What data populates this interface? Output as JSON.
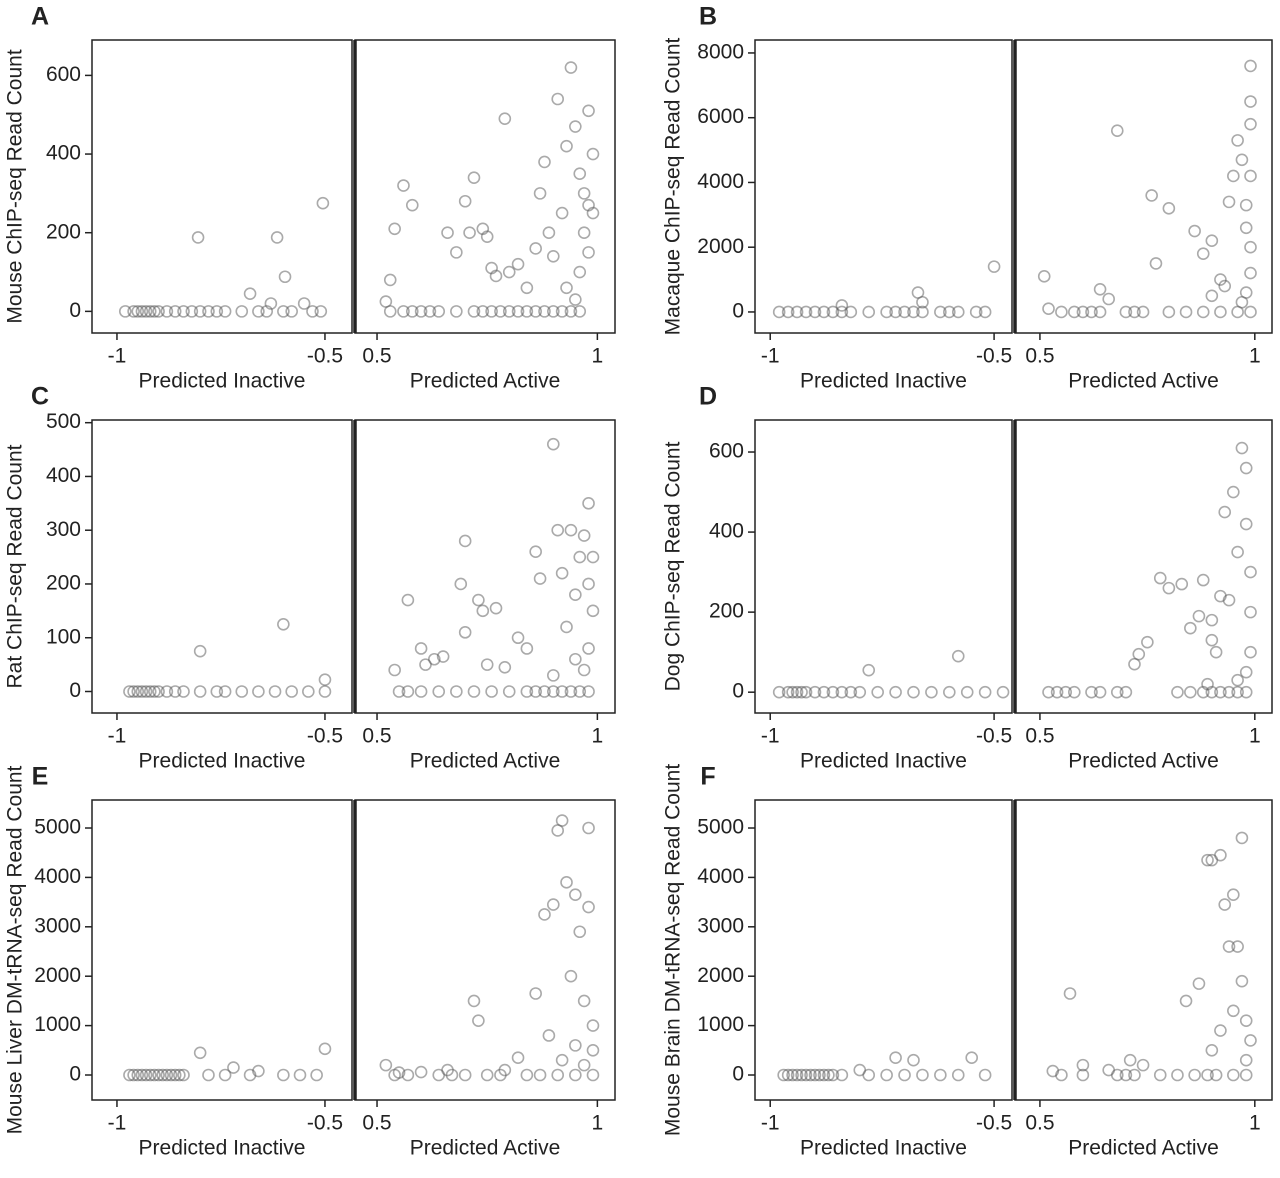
{
  "chart_data": [
    {
      "type": "scatter",
      "panel": "A",
      "ylabel": "Mouse ChIP-seq Read Count",
      "ylim": [
        -55,
        690
      ],
      "yticks": [
        0,
        200,
        400,
        600
      ],
      "marker_color": "#555555",
      "subplots": [
        {
          "xlabel": "Predicted Inactive",
          "xlim": [
            -1.06,
            -0.435
          ],
          "xticks": [
            -1,
            -0.5
          ],
          "x": [
            -0.805,
            -0.615,
            -0.596,
            -0.68,
            -0.505,
            -0.63,
            -0.55,
            -0.98,
            -0.96,
            -0.95,
            -0.94,
            -0.93,
            -0.92,
            -0.91,
            -0.9,
            -0.88,
            -0.86,
            -0.84,
            -0.82,
            -0.8,
            -0.78,
            -0.76,
            -0.74,
            -0.7,
            -0.66,
            -0.64,
            -0.6,
            -0.58,
            -0.53,
            -0.51
          ],
          "y": [
            188,
            188,
            88,
            45,
            275,
            20,
            20,
            0,
            0,
            0,
            0,
            0,
            0,
            0,
            0,
            0,
            0,
            0,
            0,
            0,
            0,
            0,
            0,
            0,
            0,
            0,
            0,
            0,
            0,
            0
          ]
        },
        {
          "xlabel": "Predicted Active",
          "xlim": [
            0.45,
            1.04
          ],
          "xticks": [
            0.5,
            1
          ],
          "x": [
            0.52,
            0.53,
            0.54,
            0.56,
            0.58,
            0.66,
            0.68,
            0.7,
            0.71,
            0.72,
            0.74,
            0.75,
            0.76,
            0.77,
            0.79,
            0.8,
            0.82,
            0.84,
            0.86,
            0.87,
            0.88,
            0.89,
            0.9,
            0.91,
            0.92,
            0.93,
            0.94,
            0.95,
            0.96,
            0.97,
            0.98,
            0.98,
            0.99,
            0.97,
            0.96,
            0.93,
            0.95,
            0.99,
            0.98,
            0.53,
            0.56,
            0.58,
            0.6,
            0.62,
            0.64,
            0.68,
            0.72,
            0.74,
            0.76,
            0.78,
            0.8,
            0.82,
            0.84,
            0.86,
            0.88,
            0.9,
            0.92,
            0.94,
            0.96
          ],
          "y": [
            25,
            80,
            210,
            320,
            270,
            200,
            150,
            280,
            200,
            340,
            210,
            190,
            110,
            90,
            490,
            100,
            120,
            60,
            160,
            300,
            380,
            200,
            140,
            540,
            250,
            420,
            620,
            470,
            350,
            300,
            510,
            270,
            400,
            200,
            100,
            60,
            30,
            250,
            150,
            0,
            0,
            0,
            0,
            0,
            0,
            0,
            0,
            0,
            0,
            0,
            0,
            0,
            0,
            0,
            0,
            0,
            0,
            0,
            0
          ]
        }
      ]
    },
    {
      "type": "scatter",
      "panel": "B",
      "ylabel": "Macaque ChIP-seq Read Count",
      "ylim": [
        -650,
        8400
      ],
      "yticks": [
        0,
        2000,
        4000,
        6000,
        8000
      ],
      "marker_color": "#555555",
      "subplots": [
        {
          "xlabel": "Predicted Inactive",
          "xlim": [
            -1.034,
            -0.46
          ],
          "xticks": [
            -1,
            -0.5
          ],
          "x": [
            -0.84,
            -0.67,
            -0.66,
            -0.5,
            -0.98,
            -0.96,
            -0.94,
            -0.92,
            -0.9,
            -0.88,
            -0.86,
            -0.84,
            -0.82,
            -0.78,
            -0.74,
            -0.72,
            -0.7,
            -0.68,
            -0.66,
            -0.62,
            -0.6,
            -0.58,
            -0.54,
            -0.52
          ],
          "y": [
            200,
            600,
            300,
            1400,
            0,
            0,
            0,
            0,
            0,
            0,
            0,
            0,
            0,
            0,
            0,
            0,
            0,
            0,
            0,
            0,
            0,
            0,
            0,
            0
          ]
        },
        {
          "xlabel": "Predicted Active",
          "xlim": [
            0.442,
            1.04
          ],
          "xticks": [
            0.5,
            1
          ],
          "x": [
            0.51,
            0.52,
            0.68,
            0.64,
            0.66,
            0.76,
            0.77,
            0.8,
            0.86,
            0.88,
            0.9,
            0.92,
            0.94,
            0.95,
            0.96,
            0.97,
            0.98,
            0.99,
            0.99,
            0.99,
            0.99,
            0.98,
            0.99,
            0.99,
            0.98,
            0.97,
            0.93,
            0.9,
            0.55,
            0.58,
            0.6,
            0.62,
            0.64,
            0.7,
            0.72,
            0.74,
            0.8,
            0.84,
            0.88,
            0.92,
            0.96,
            0.99
          ],
          "y": [
            1100,
            100,
            5600,
            700,
            400,
            3600,
            1500,
            3200,
            2500,
            1800,
            2200,
            1000,
            3400,
            4200,
            5300,
            4700,
            3300,
            7600,
            6500,
            5800,
            4200,
            2600,
            2000,
            1200,
            600,
            300,
            800,
            500,
            0,
            0,
            0,
            0,
            0,
            0,
            0,
            0,
            0,
            0,
            0,
            0,
            0,
            0
          ]
        }
      ]
    },
    {
      "type": "scatter",
      "panel": "C",
      "ylabel": "Rat ChIP-seq Read Count",
      "ylim": [
        -40,
        505
      ],
      "yticks": [
        0,
        100,
        200,
        300,
        400,
        500
      ],
      "marker_color": "#555555",
      "subplots": [
        {
          "xlabel": "Predicted Inactive",
          "xlim": [
            -1.06,
            -0.435
          ],
          "xticks": [
            -1,
            -0.5
          ],
          "x": [
            -0.8,
            -0.6,
            -0.5,
            -0.97,
            -0.96,
            -0.95,
            -0.94,
            -0.93,
            -0.92,
            -0.91,
            -0.9,
            -0.88,
            -0.86,
            -0.84,
            -0.8,
            -0.76,
            -0.74,
            -0.7,
            -0.66,
            -0.62,
            -0.58,
            -0.54,
            -0.5
          ],
          "y": [
            75,
            125,
            22,
            0,
            0,
            0,
            0,
            0,
            0,
            0,
            0,
            0,
            0,
            0,
            0,
            0,
            0,
            0,
            0,
            0,
            0,
            0,
            0
          ]
        },
        {
          "xlabel": "Predicted Active",
          "xlim": [
            0.45,
            1.04
          ],
          "xticks": [
            0.5,
            1
          ],
          "x": [
            0.54,
            0.57,
            0.6,
            0.61,
            0.63,
            0.65,
            0.7,
            0.69,
            0.7,
            0.73,
            0.74,
            0.77,
            0.75,
            0.79,
            0.82,
            0.84,
            0.86,
            0.87,
            0.9,
            0.91,
            0.92,
            0.93,
            0.94,
            0.95,
            0.96,
            0.97,
            0.98,
            0.98,
            0.99,
            0.99,
            0.98,
            0.97,
            0.95,
            0.9,
            0.55,
            0.57,
            0.6,
            0.64,
            0.68,
            0.72,
            0.76,
            0.8,
            0.84,
            0.86,
            0.88,
            0.9,
            0.92,
            0.94,
            0.96,
            0.98
          ],
          "y": [
            40,
            170,
            80,
            50,
            60,
            65,
            280,
            200,
            110,
            170,
            150,
            155,
            50,
            45,
            100,
            80,
            260,
            210,
            460,
            300,
            220,
            120,
            300,
            180,
            250,
            290,
            350,
            200,
            250,
            150,
            80,
            40,
            60,
            30,
            0,
            0,
            0,
            0,
            0,
            0,
            0,
            0,
            0,
            0,
            0,
            0,
            0,
            0,
            0,
            0
          ]
        }
      ]
    },
    {
      "type": "scatter",
      "panel": "D",
      "ylabel": "Dog ChIP-seq Read Count",
      "ylim": [
        -52,
        680
      ],
      "yticks": [
        0,
        200,
        400,
        600
      ],
      "marker_color": "#555555",
      "subplots": [
        {
          "xlabel": "Predicted Inactive",
          "xlim": [
            -1.034,
            -0.46
          ],
          "xticks": [
            -1,
            -0.5
          ],
          "x": [
            -0.78,
            -0.58,
            -0.98,
            -0.96,
            -0.95,
            -0.94,
            -0.93,
            -0.92,
            -0.9,
            -0.88,
            -0.86,
            -0.84,
            -0.82,
            -0.8,
            -0.76,
            -0.72,
            -0.68,
            -0.64,
            -0.6,
            -0.56,
            -0.52,
            -0.48
          ],
          "y": [
            55,
            90,
            0,
            0,
            0,
            0,
            0,
            0,
            0,
            0,
            0,
            0,
            0,
            0,
            0,
            0,
            0,
            0,
            0,
            0,
            0,
            0
          ]
        },
        {
          "xlabel": "Predicted Active",
          "xlim": [
            0.442,
            1.04
          ],
          "xticks": [
            0.5,
            1
          ],
          "x": [
            0.72,
            0.73,
            0.75,
            0.78,
            0.8,
            0.83,
            0.85,
            0.87,
            0.88,
            0.9,
            0.91,
            0.92,
            0.93,
            0.94,
            0.95,
            0.96,
            0.97,
            0.98,
            0.98,
            0.99,
            0.99,
            0.99,
            0.98,
            0.96,
            0.9,
            0.89,
            0.52,
            0.54,
            0.56,
            0.58,
            0.62,
            0.64,
            0.68,
            0.7,
            0.82,
            0.85,
            0.88,
            0.9,
            0.92,
            0.94,
            0.96,
            0.98
          ],
          "y": [
            70,
            95,
            125,
            285,
            260,
            270,
            160,
            190,
            280,
            130,
            100,
            240,
            450,
            230,
            500,
            350,
            610,
            560,
            420,
            300,
            200,
            100,
            50,
            30,
            180,
            20,
            0,
            0,
            0,
            0,
            0,
            0,
            0,
            0,
            0,
            0,
            0,
            0,
            0,
            0,
            0,
            0
          ]
        }
      ]
    },
    {
      "type": "scatter",
      "panel": "E",
      "ylabel": "Mouse Liver DM-tRNA-seq Read Count",
      "ylim": [
        -506,
        5567
      ],
      "yticks": [
        0,
        1000,
        2000,
        3000,
        4000,
        5000
      ],
      "marker_color": "#555555",
      "subplots": [
        {
          "xlabel": "Predicted Inactive",
          "xlim": [
            -1.06,
            -0.435
          ],
          "xticks": [
            -1,
            -0.5
          ],
          "x": [
            -0.8,
            -0.5,
            -0.72,
            -0.66,
            -0.97,
            -0.96,
            -0.95,
            -0.94,
            -0.93,
            -0.92,
            -0.91,
            -0.9,
            -0.89,
            -0.88,
            -0.87,
            -0.86,
            -0.85,
            -0.84,
            -0.78,
            -0.74,
            -0.68,
            -0.6,
            -0.56,
            -0.52
          ],
          "y": [
            450,
            530,
            150,
            80,
            0,
            0,
            0,
            0,
            0,
            0,
            0,
            0,
            0,
            0,
            0,
            0,
            0,
            0,
            0,
            0,
            0,
            0,
            0,
            0
          ]
        },
        {
          "xlabel": "Predicted Active",
          "xlim": [
            0.45,
            1.04
          ],
          "xticks": [
            0.5,
            1
          ],
          "x": [
            0.52,
            0.55,
            0.6,
            0.66,
            0.72,
            0.73,
            0.79,
            0.82,
            0.86,
            0.88,
            0.89,
            0.9,
            0.91,
            0.92,
            0.93,
            0.94,
            0.95,
            0.96,
            0.97,
            0.98,
            0.98,
            0.99,
            0.99,
            0.97,
            0.95,
            0.92,
            0.54,
            0.57,
            0.64,
            0.67,
            0.7,
            0.75,
            0.78,
            0.84,
            0.87,
            0.91,
            0.95,
            0.99
          ],
          "y": [
            200,
            50,
            60,
            100,
            1500,
            1100,
            100,
            350,
            1650,
            3250,
            800,
            3450,
            4950,
            5150,
            3900,
            2000,
            3650,
            2900,
            1500,
            5000,
            3400,
            1000,
            500,
            200,
            600,
            300,
            0,
            0,
            0,
            0,
            0,
            0,
            0,
            0,
            0,
            0,
            0,
            0
          ]
        }
      ]
    },
    {
      "type": "scatter",
      "panel": "F",
      "ylabel": "Mouse Brain DM-tRNA-seq Read Count",
      "ylim": [
        -506,
        5567
      ],
      "yticks": [
        0,
        1000,
        2000,
        3000,
        4000,
        5000
      ],
      "marker_color": "#555555",
      "subplots": [
        {
          "xlabel": "Predicted Inactive",
          "xlim": [
            -1.034,
            -0.46
          ],
          "xticks": [
            -1,
            -0.5
          ],
          "x": [
            -0.72,
            -0.68,
            -0.55,
            -0.8,
            -0.97,
            -0.96,
            -0.95,
            -0.94,
            -0.93,
            -0.92,
            -0.91,
            -0.9,
            -0.89,
            -0.88,
            -0.87,
            -0.86,
            -0.84,
            -0.78,
            -0.74,
            -0.7,
            -0.66,
            -0.62,
            -0.58,
            -0.52
          ],
          "y": [
            350,
            300,
            350,
            100,
            0,
            0,
            0,
            0,
            0,
            0,
            0,
            0,
            0,
            0,
            0,
            0,
            0,
            0,
            0,
            0,
            0,
            0,
            0,
            0
          ]
        },
        {
          "xlabel": "Predicted Active",
          "xlim": [
            0.442,
            1.04
          ],
          "xticks": [
            0.5,
            1
          ],
          "x": [
            0.53,
            0.57,
            0.6,
            0.66,
            0.71,
            0.74,
            0.84,
            0.87,
            0.89,
            0.9,
            0.92,
            0.93,
            0.94,
            0.95,
            0.96,
            0.97,
            0.97,
            0.98,
            0.99,
            0.98,
            0.95,
            0.92,
            0.9,
            0.55,
            0.6,
            0.68,
            0.7,
            0.72,
            0.78,
            0.82,
            0.86,
            0.89,
            0.91,
            0.95,
            0.98
          ],
          "y": [
            80,
            1650,
            200,
            100,
            300,
            200,
            1500,
            1850,
            4350,
            4350,
            4450,
            3450,
            2600,
            3650,
            2600,
            4800,
            1900,
            1100,
            700,
            300,
            1300,
            900,
            500,
            0,
            0,
            0,
            0,
            0,
            0,
            0,
            0,
            0,
            0,
            0,
            0
          ]
        }
      ]
    }
  ]
}
